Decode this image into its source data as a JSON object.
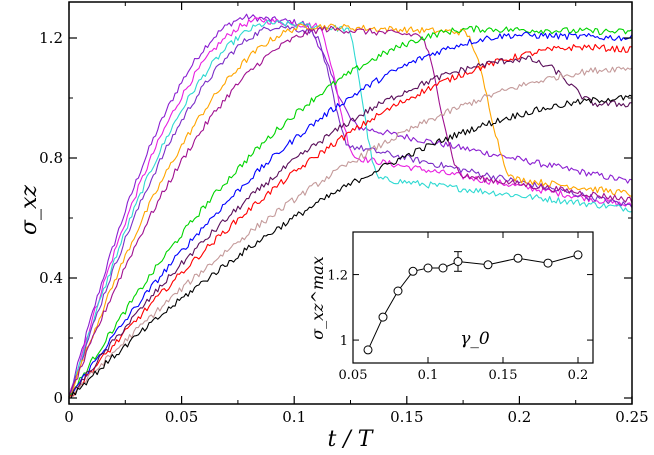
{
  "chart_data": [
    {
      "type": "line",
      "title": "",
      "xlabel": "t / T",
      "ylabel": "σ_xz",
      "xlim": [
        0,
        0.25
      ],
      "ylim": [
        -0.02,
        1.32
      ],
      "xticks": [
        0,
        0.05,
        0.1,
        0.15,
        0.2,
        0.25
      ],
      "xtick_labels": [
        "0",
        "0.05",
        "0.1",
        "0.15",
        "0.2",
        "0.25"
      ],
      "yticks": [
        0,
        0.4,
        0.8,
        1.2
      ],
      "ytick_labels": [
        "0",
        "0.4",
        "0.8",
        "1.2"
      ],
      "grid": false,
      "legend": "none",
      "series": [
        {
          "name": "purple peak 0.080",
          "color": "#8B1FD1",
          "peak_t": 0.08,
          "peak_s": 1.27,
          "drop_t": 0.103,
          "drop_end_t": 0.13,
          "post_s": 0.9,
          "final_s": 0.72
        },
        {
          "name": "magenta peak 0.085",
          "color": "#E81FE0",
          "peak_t": 0.085,
          "peak_s": 1.26,
          "drop_t": 0.11,
          "drop_end_t": 0.128,
          "post_s": 0.8,
          "final_s": 0.64
        },
        {
          "name": "cyan peak 0.090",
          "color": "#2FD9D2",
          "peak_t": 0.09,
          "peak_s": 1.25,
          "drop_t": 0.123,
          "drop_end_t": 0.138,
          "post_s": 0.73,
          "final_s": 0.63
        },
        {
          "name": "violet peak 0.094",
          "color": "#7A2EC7",
          "peak_t": 0.094,
          "peak_s": 1.24,
          "drop_t": 0.108,
          "drop_end_t": 0.125,
          "post_s": 0.84,
          "final_s": 0.64
        },
        {
          "name": "orange peak 0.107",
          "color": "#FFA500",
          "peak_t": 0.107,
          "peak_s": 1.24,
          "drop_t": 0.175,
          "drop_end_t": 0.198,
          "post_s": 0.73,
          "final_s": 0.68
        },
        {
          "name": "plum peak 0.115",
          "color": "#A01090",
          "peak_t": 0.115,
          "peak_s": 1.23,
          "drop_t": 0.155,
          "drop_end_t": 0.175,
          "post_s": 0.74,
          "final_s": 0.66
        },
        {
          "name": "green rise",
          "color": "#00D400",
          "peak_t": 0.18,
          "peak_s": 1.23,
          "final_s": 1.22
        },
        {
          "name": "blue rise",
          "color": "#0000FF",
          "peak_t": 0.2,
          "peak_s": 1.21,
          "final_s": 1.2
        },
        {
          "name": "red rise",
          "color": "#FF0000",
          "peak_t": 0.23,
          "peak_s": 1.17,
          "final_s": 1.16
        },
        {
          "name": "dark purple rise",
          "color": "#5A0F5A",
          "peak_t": 0.205,
          "peak_s": 1.13,
          "drop_t": 0.21,
          "drop_end_t": 0.235,
          "post_s": 0.98,
          "final_s": 0.98
        },
        {
          "name": "rosy brown rise",
          "color": "#C49A9A",
          "peak_t": 0.25,
          "peak_s": 1.1,
          "final_s": 1.1
        },
        {
          "name": "black rise",
          "color": "#000000",
          "peak_t": 0.25,
          "peak_s": 1.0,
          "final_s": 1.0
        }
      ]
    },
    {
      "type": "scatter",
      "title": "",
      "xlabel": "γ_0",
      "ylabel": "σ_xz^max",
      "xlim": [
        0.05,
        0.21
      ],
      "ylim": [
        0.93,
        1.33
      ],
      "xticks": [
        0.05,
        0.1,
        0.15,
        0.2
      ],
      "xtick_labels": [
        "0.05",
        "0.1",
        "0.15",
        "0.2"
      ],
      "yticks": [
        1.0,
        1.2
      ],
      "ytick_labels": [
        "1",
        "1.2"
      ],
      "x": [
        0.06,
        0.07,
        0.08,
        0.09,
        0.1,
        0.11,
        0.12,
        0.14,
        0.16,
        0.18,
        0.2
      ],
      "y": [
        0.97,
        1.07,
        1.15,
        1.21,
        1.22,
        1.22,
        1.24,
        1.23,
        1.25,
        1.235,
        1.26
      ],
      "error_bars": [
        {
          "x": 0.12,
          "y": 1.24,
          "err": 0.03
        }
      ],
      "marker": "open-circle",
      "connected": true
    }
  ]
}
